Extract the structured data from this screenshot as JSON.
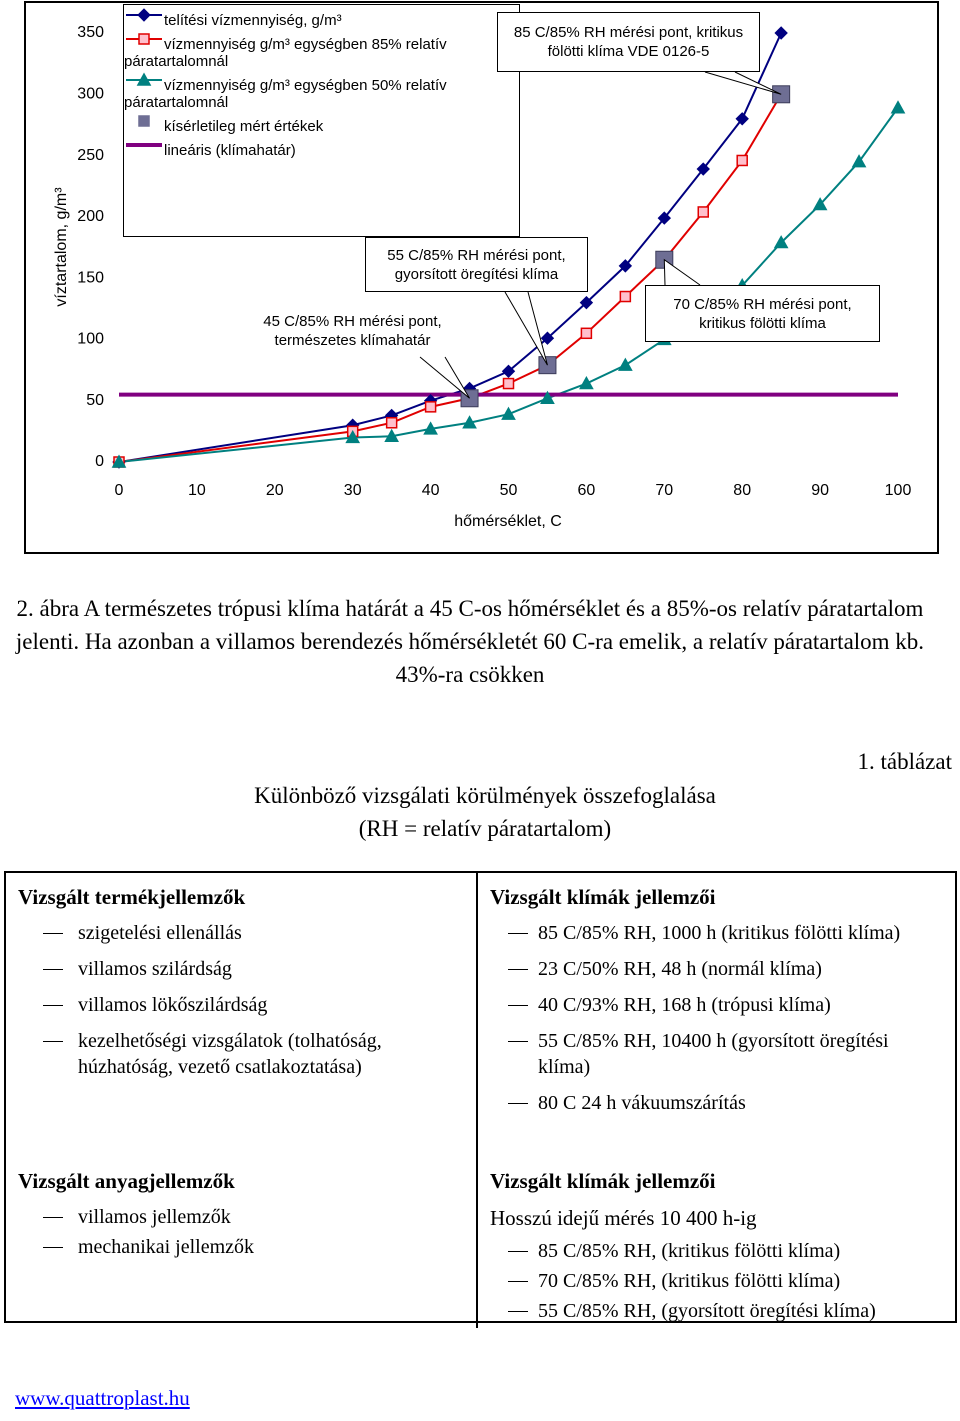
{
  "chart_data": {
    "type": "line",
    "y_label": "víztartalom, g/m³",
    "x_label": "hőmérséklet, C",
    "xlim": [
      0,
      100
    ],
    "xticks": [
      0,
      10,
      20,
      30,
      40,
      50,
      60,
      70,
      80,
      90,
      100
    ],
    "ylim": [
      0,
      350
    ],
    "yticks": [
      0,
      50,
      100,
      150,
      200,
      250,
      300,
      350
    ],
    "grid": false,
    "series": [
      {
        "name": "telítési vízmennyiség, g/m³",
        "color": "#000080",
        "marker": "diamond",
        "line": true,
        "x": [
          0,
          30,
          35,
          40,
          45,
          50,
          55,
          60,
          65,
          70,
          75,
          80,
          85
        ],
        "values": [
          0,
          30,
          38,
          50,
          60,
          74,
          101,
          130,
          160,
          199,
          239,
          280,
          350
        ]
      },
      {
        "name": "vízmennyiség g/m³ egységben 85% relatív páratartalomnál",
        "color": "#e00000",
        "marker": "square",
        "line": true,
        "x": [
          0,
          30,
          35,
          40,
          45,
          50,
          55,
          60,
          65,
          70,
          75,
          80,
          85
        ],
        "values": [
          0,
          25,
          32,
          45,
          52,
          64,
          79,
          105,
          135,
          165,
          204,
          246,
          300
        ]
      },
      {
        "name": "vízmennyiség g/m³ egységben 50% relatív páratartalomnál",
        "color": "#008080",
        "marker": "triangle",
        "line": true,
        "x": [
          0,
          30,
          35,
          40,
          45,
          50,
          55,
          60,
          65,
          70,
          75,
          80,
          85,
          90,
          95,
          100
        ],
        "values": [
          0,
          20,
          21,
          27,
          32,
          39,
          52,
          64,
          79,
          100,
          120,
          144,
          179,
          210,
          245,
          289
        ]
      },
      {
        "name": "kísérletileg mért értékek",
        "color": "#6e6e94",
        "marker": "bigsquare",
        "line": false,
        "x": [
          45,
          55,
          70,
          85
        ],
        "values": [
          52,
          79,
          165,
          300
        ]
      },
      {
        "name": "lineáris (klímahatár)",
        "color": "#800080",
        "line": true,
        "x": [
          0,
          100
        ],
        "values": [
          55,
          55
        ]
      }
    ],
    "annotations": [
      "85 C/85% RH mérési pont, kritikus fölötti klíma VDE 0126-5",
      "55 C/85% RH mérési pont, gyorsított öregítési klíma",
      "45 C/85% RH mérési pont, természetes klímahatár",
      "70 C/85% RH mérési pont, kritikus fölötti klíma"
    ]
  },
  "caption": "2. ábra A természetes trópusi klíma határát a 45 C-os hőmérséklet és a 85%-os relatív páratartalom jelenti. Ha azonban a villamos berendezés hőmérsékletét 60 C-ra emelik, a relatív páratartalom kb. 43%-ra csökken",
  "table_label": "1. táblázat",
  "table_title": [
    "Különböző vizsgálati körülmények összefoglalása",
    "(RH = relatív páratartalom)"
  ],
  "table": {
    "row1_left": {
      "heading": "Vizsgált termékjellemzők",
      "items": [
        "szigetelési ellenállás",
        "villamos szilárdság",
        "villamos lökőszilárdság",
        "kezelhetőségi vizsgálatok (tolhatóság, húzhatóság, vezető csatlakoztatása)"
      ]
    },
    "row1_right": {
      "heading": "Vizsgált klímák jellemzői",
      "items": [
        "85 C/85% RH, 1000 h (kritikus fölötti klíma)",
        "23 C/50% RH, 48 h (normál klíma)",
        "40 C/93% RH, 168 h (trópusi klíma)",
        "55 C/85% RH, 10400 h (gyorsított öregítési klíma)",
        "80 C 24 h vákuumszárítás"
      ]
    },
    "row2_left": {
      "heading": "Vizsgált anyagjellemzők",
      "items": [
        "villamos jellemzők",
        "mechanikai jellemzők"
      ]
    },
    "row2_right": {
      "heading": "Vizsgált klímák jellemzői",
      "note": "Hosszú idejű mérés 10 400 h-ig",
      "items": [
        "85 C/85% RH, (kritikus fölötti klíma)",
        "70 C/85% RH, (kritikus fölötti klíma)",
        "55 C/85% RH, (gyorsított öregítési klíma)"
      ]
    }
  },
  "footer": "www.quattroplast.hu"
}
